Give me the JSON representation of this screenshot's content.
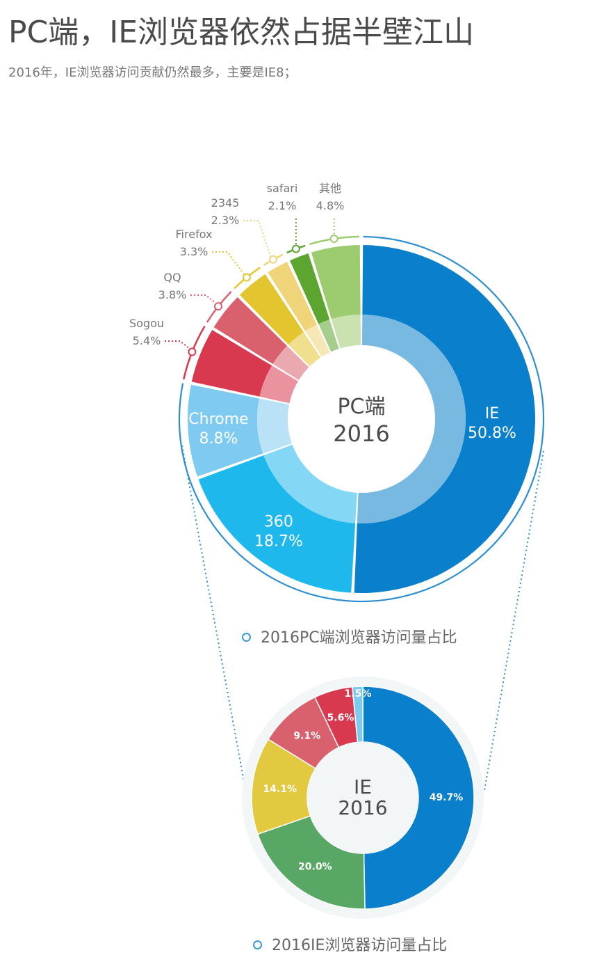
{
  "title": "PC端，IE浏览器依然占据半壁江山",
  "subtitle": "2016年，IE浏览器访问贡献仍然最多，主要是IE8；",
  "colors": {
    "IE": "#0a7fcb",
    "360": "#1fb8ec",
    "Chrome": "#7fcaf1",
    "Sogou": "#d9394f",
    "QQ": "#d9606d",
    "Firefox": "#e3c52f",
    "2345": "#efd47a",
    "safari": "#5ca531",
    "other": "#9dcb70",
    "ring": "#2e8fd0",
    "ie_bg": "#f2f6f6"
  },
  "chart_data": [
    {
      "type": "pie",
      "title": "2016PC端浏览器访问量占比",
      "center_label": [
        "PC端",
        "2016"
      ],
      "slices": [
        {
          "name": "IE",
          "value": 50.8,
          "label": "50.8%"
        },
        {
          "name": "360",
          "value": 18.7,
          "label": "18.7%"
        },
        {
          "name": "Chrome",
          "value": 8.8,
          "label": "8.8%"
        },
        {
          "name": "Sogou",
          "value": 5.4,
          "label": "5.4%"
        },
        {
          "name": "QQ",
          "value": 3.8,
          "label": "3.8%"
        },
        {
          "name": "Firefox",
          "value": 3.3,
          "label": "3.3%"
        },
        {
          "name": "2345",
          "value": 2.3,
          "label": "2.3%"
        },
        {
          "name": "safari",
          "value": 2.1,
          "label": "2.1%"
        },
        {
          "name": "其他",
          "value": 4.8,
          "label": "4.8%"
        }
      ]
    },
    {
      "type": "pie",
      "title": "2016IE浏览器访问量占比",
      "center_label": [
        "IE",
        "2016"
      ],
      "slices": [
        {
          "value": 49.7,
          "label": "49.7%",
          "color": "#0a7fcb"
        },
        {
          "value": 20.0,
          "label": "20.0%",
          "color": "#58a764"
        },
        {
          "value": 14.1,
          "label": "14.1%",
          "color": "#e3c940"
        },
        {
          "value": 9.1,
          "label": "9.1%",
          "color": "#d9606d"
        },
        {
          "value": 5.6,
          "label": "5.6%",
          "color": "#d9394f"
        },
        {
          "value": 1.5,
          "label": "1.5%",
          "color": "#7fcaf1"
        }
      ]
    }
  ]
}
